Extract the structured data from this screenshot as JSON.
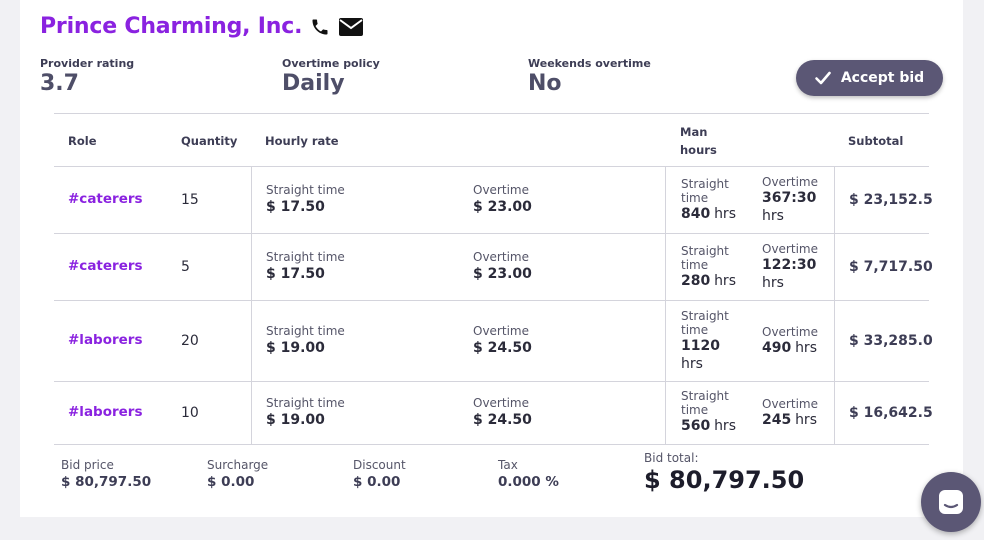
{
  "provider": {
    "name": "Prince Charming, Inc.",
    "icons": [
      "phone-icon",
      "mail-icon"
    ]
  },
  "stats": {
    "rating_label": "Provider rating",
    "rating_value": "3.7",
    "overtime_label": "Overtime policy",
    "overtime_value": "Daily",
    "weekends_label": "Weekends overtime",
    "weekends_value": "No"
  },
  "accept_button": {
    "label": "Accept bid",
    "icon": "check-icon"
  },
  "table": {
    "headers": {
      "role": "Role",
      "quantity": "Quantity",
      "hourly_rate": "Hourly rate",
      "man_hours_1": "Man",
      "man_hours_2": "hours",
      "subtotal": "Subtotal"
    },
    "rows": [
      {
        "role": "#caterers",
        "quantity": "15",
        "st_label": "Straight time",
        "st_rate": "$ 17.50",
        "ot_label": "Overtime",
        "ot_rate": "$ 23.00",
        "st_hours_label_1": "Straight",
        "st_hours_label_2": "time",
        "st_hours": "840",
        "st_unit": "hrs",
        "ot_hours_label": "Overtime",
        "ot_hours": "367:30",
        "ot_unit": "hrs",
        "subtotal": "$ 23,152.5"
      },
      {
        "role": "#caterers",
        "quantity": "5",
        "st_label": "Straight time",
        "st_rate": "$ 17.50",
        "ot_label": "Overtime",
        "ot_rate": "$ 23.00",
        "st_hours_label_1": "Straight",
        "st_hours_label_2": "time",
        "st_hours": "280",
        "st_unit": "hrs",
        "ot_hours_label": "Overtime",
        "ot_hours": "122:30",
        "ot_unit": "hrs",
        "subtotal": "$ 7,717.50"
      },
      {
        "role": "#laborers",
        "quantity": "20",
        "st_label": "Straight time",
        "st_rate": "$ 19.00",
        "ot_label": "Overtime",
        "ot_rate": "$ 24.50",
        "st_hours_label_1": "Straight",
        "st_hours_label_2": "time",
        "st_hours": "1120",
        "st_unit": "hrs",
        "ot_hours_label": "Overtime",
        "ot_hours": "490",
        "ot_unit": "hrs",
        "subtotal": "$ 33,285.0"
      },
      {
        "role": "#laborers",
        "quantity": "10",
        "st_label": "Straight time",
        "st_rate": "$ 19.00",
        "ot_label": "Overtime",
        "ot_rate": "$ 24.50",
        "st_hours_label_1": "Straight",
        "st_hours_label_2": "time",
        "st_hours": "560",
        "st_unit": "hrs",
        "ot_hours_label": "Overtime",
        "ot_hours": "245",
        "ot_unit": "hrs",
        "subtotal": "$ 16,642.5"
      }
    ]
  },
  "footer": {
    "bid_price_label": "Bid price",
    "bid_price": "$ 80,797.50",
    "surcharge_label": "Surcharge",
    "surcharge": "$ 0.00",
    "discount_label": "Discount",
    "discount": "$ 0.00",
    "tax_label": "Tax",
    "tax": "0.000 %",
    "bid_total_label": "Bid total:",
    "bid_total": "$ 80,797.50"
  },
  "chat_button": {
    "icon": "chat-icon"
  },
  "colors": {
    "accent": "#8a22e0",
    "button": "#5b5775"
  }
}
